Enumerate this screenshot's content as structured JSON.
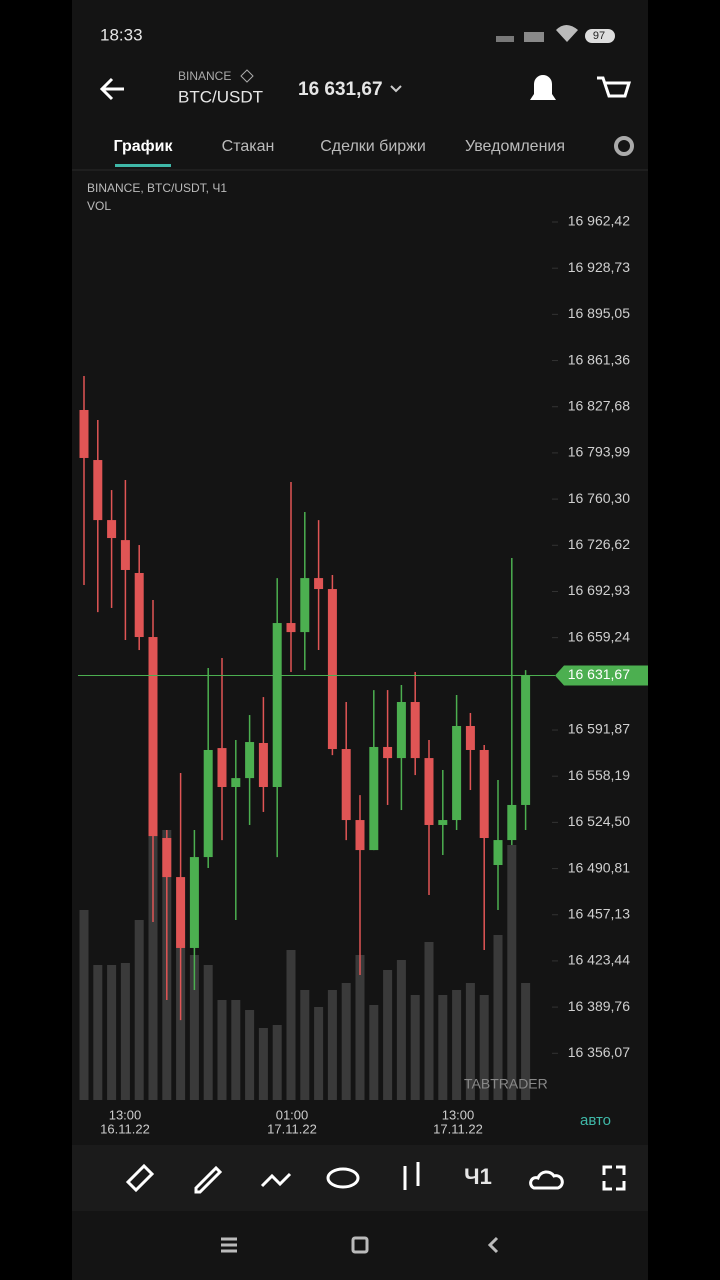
{
  "status_bar": {
    "time": "18:33",
    "battery": "97"
  },
  "header": {
    "exchange": "BINANCE",
    "pair": "BTC/USDT",
    "price": "16 631,67"
  },
  "tabs": [
    "График",
    "Стакан",
    "Сделки биржи",
    "Уведомления"
  ],
  "chart": {
    "type": "candlestick",
    "legend": "BINANCE, BTC/USDT, Ч1",
    "volume_label": "VOL",
    "watermark": "TABTRADER",
    "scale_mode": "авто",
    "ylim": [
      16322.0,
      17000.35
    ],
    "yticks": [
      {
        "value": 16962.42,
        "label": "16 962,42"
      },
      {
        "value": 16928.73,
        "label": "16 928,73"
      },
      {
        "value": 16895.05,
        "label": "16 895,05"
      },
      {
        "value": 16861.36,
        "label": "16 861,36"
      },
      {
        "value": 16827.68,
        "label": "16 827,68"
      },
      {
        "value": 16793.99,
        "label": "16 793,99"
      },
      {
        "value": 16760.3,
        "label": "16 760,30"
      },
      {
        "value": 16726.62,
        "label": "16 726,62"
      },
      {
        "value": 16692.93,
        "label": "16 692,93"
      },
      {
        "value": 16659.24,
        "label": "16 659,24"
      },
      {
        "value": 16591.87,
        "label": "16 591,87"
      },
      {
        "value": 16558.19,
        "label": "16 558,19"
      },
      {
        "value": 16524.5,
        "label": "16 524,50"
      },
      {
        "value": 16490.81,
        "label": "16 490,81"
      },
      {
        "value": 16457.13,
        "label": "16 457,13"
      },
      {
        "value": 16423.44,
        "label": "16 423,44"
      },
      {
        "value": 16389.76,
        "label": "16 389,76"
      },
      {
        "value": 16356.07,
        "label": "16 356,07"
      }
    ],
    "last_price": {
      "value": 16631.67,
      "label": "16 631,67"
    },
    "x_labels": [
      {
        "time": "13:00",
        "date": "16.11.22"
      },
      {
        "time": "01:00",
        "date": "17.11.22"
      },
      {
        "time": "13:00",
        "date": "17.11.22"
      }
    ],
    "up_color": "#4caf50",
    "down_color": "#e05555",
    "volume_color": "#3a3a3a",
    "open": [
      16825.3,
      16788.8,
      16745.0,
      16730.4,
      16706.4,
      16659.7,
      16513.1,
      16484.6,
      16432.9,
      16499.2,
      16578.7,
      16550.3,
      16556.8,
      16582.4,
      16550.3,
      16669.9,
      16663.3,
      16702.7,
      16694.7,
      16578.0,
      16526.2,
      16504.3,
      16579.5,
      16571.4,
      16612.3,
      16571.4,
      16522.6,
      16526.2,
      16594.8,
      16577.3,
      16493.4,
      16511.6,
      16537.2
    ],
    "high": [
      16850.1,
      16818.0,
      16766.9,
      16774.2,
      16726.8,
      16686.7,
      16518.9,
      16560.5,
      16518.9,
      16637.1,
      16644.4,
      16584.6,
      16602.8,
      16615.9,
      16702.7,
      16772.8,
      16750.9,
      16745.0,
      16704.9,
      16612.3,
      16544.4,
      16621.0,
      16621.0,
      16624.7,
      16634.2,
      16584.6,
      16562.7,
      16617.4,
      16604.3,
      16580.9,
      16555.4,
      16717.3,
      16635.6
    ],
    "low": [
      16697.6,
      16677.9,
      16680.9,
      16657.5,
      16650.2,
      16451.8,
      16394.9,
      16380.3,
      16402.2,
      16491.2,
      16511.6,
      16453.3,
      16522.6,
      16532.1,
      16499.2,
      16634.2,
      16635.6,
      16650.2,
      16573.6,
      16511.6,
      16413.2,
      16504.3,
      16537.2,
      16533.5,
      16559.0,
      16471.5,
      16500.7,
      16518.9,
      16548.1,
      16431.4,
      16460.6,
      16508.0,
      16518.9
    ],
    "close": [
      16790.3,
      16745.0,
      16731.9,
      16708.6,
      16659.7,
      16514.5,
      16484.6,
      16432.9,
      16499.2,
      16577.3,
      16550.3,
      16556.8,
      16583.1,
      16550.3,
      16669.9,
      16663.3,
      16702.7,
      16694.7,
      16578.0,
      16526.2,
      16504.3,
      16579.5,
      16571.4,
      16612.3,
      16571.4,
      16522.6,
      16526.2,
      16594.8,
      16577.3,
      16513.1,
      16511.6,
      16537.2,
      16631.67
    ],
    "volume": [
      190,
      135,
      135,
      137,
      180,
      265,
      270,
      190,
      145,
      135,
      100,
      100,
      90,
      72,
      75,
      150,
      110,
      93,
      110,
      117,
      145,
      95,
      130,
      140,
      105,
      158,
      105,
      110,
      117,
      105,
      165,
      255,
      117
    ]
  },
  "toolbar": {
    "interval": "Ч1"
  }
}
